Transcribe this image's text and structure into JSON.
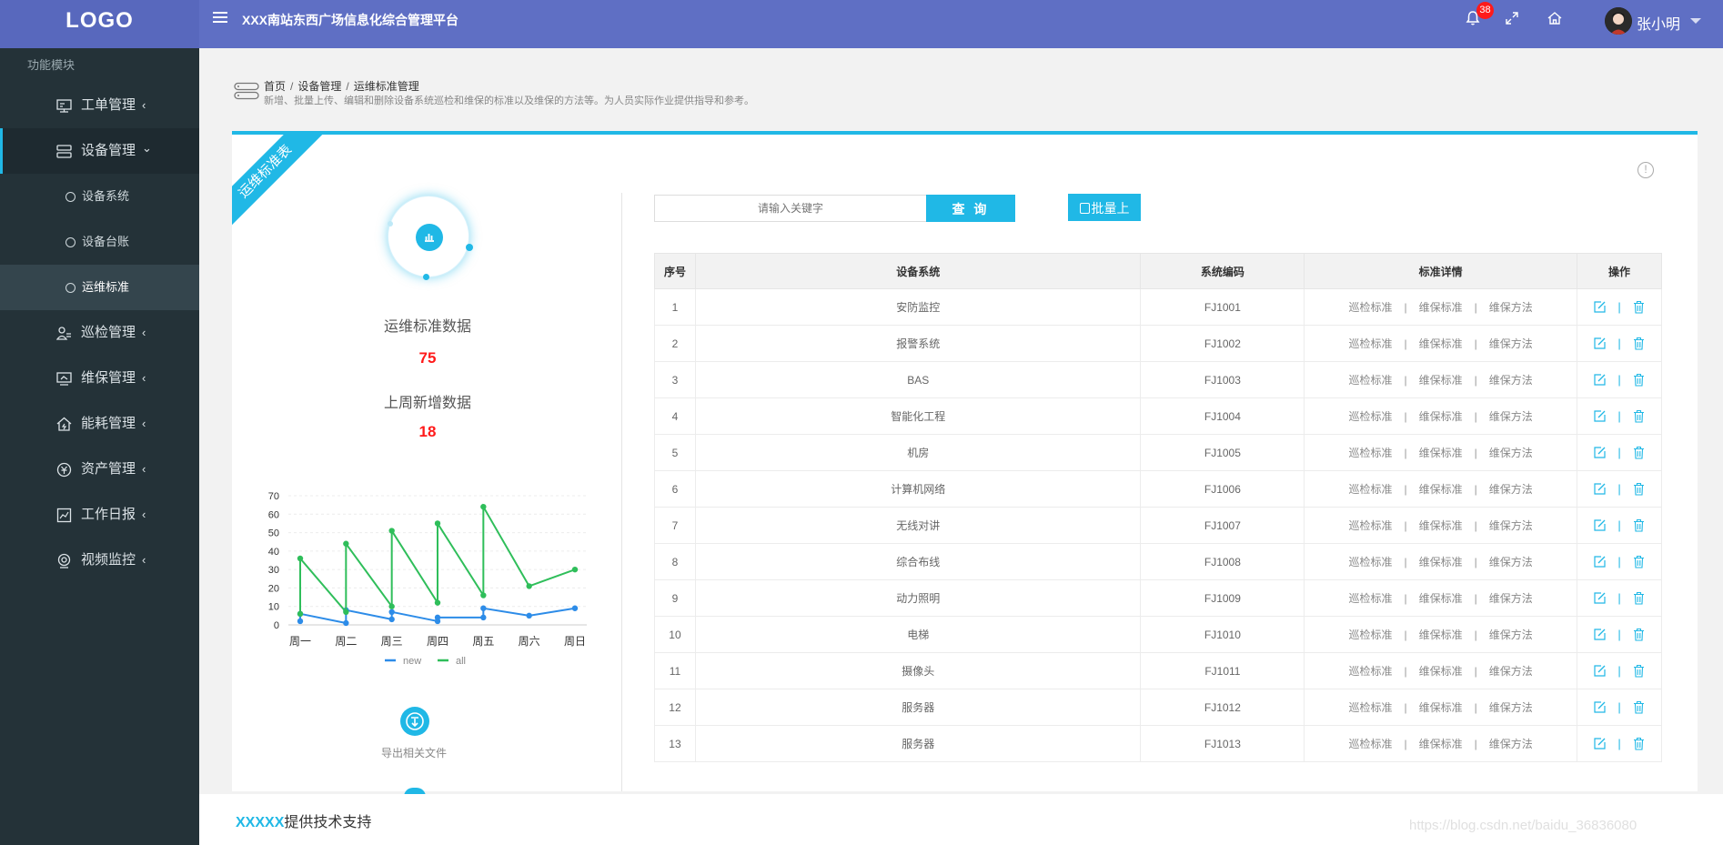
{
  "header": {
    "logo": "LOGO",
    "title": "XXX南站东西广场信息化综合管理平台",
    "notification_count": "38",
    "user_name": "张小明"
  },
  "sidebar": {
    "section_title": "功能模块",
    "items": [
      {
        "label": "工单管理",
        "icon": "workorder-icon",
        "chevron": "‹"
      },
      {
        "label": "设备管理",
        "icon": "device-icon",
        "chevron": "⌄"
      },
      {
        "label": "巡检管理",
        "icon": "inspection-icon",
        "chevron": "‹"
      },
      {
        "label": "维保管理",
        "icon": "maintenance-icon",
        "chevron": "‹"
      },
      {
        "label": "能耗管理",
        "icon": "energy-icon",
        "chevron": "‹"
      },
      {
        "label": "资产管理",
        "icon": "asset-icon",
        "chevron": "‹"
      },
      {
        "label": "工作日报",
        "icon": "report-icon",
        "chevron": "‹"
      },
      {
        "label": "视频监控",
        "icon": "video-icon",
        "chevron": "‹"
      }
    ],
    "sub_items": [
      "设备系统",
      "设备台账",
      "运维标准"
    ]
  },
  "breadcrumb": {
    "items": [
      "首页",
      "设备管理",
      "运维标准管理"
    ],
    "separator": "/",
    "description": "新增、批量上传、编辑和删除设备系统巡检和维保的标准以及维保的方法等。为人员实际作业提供指导和参考。"
  },
  "ribbon": "运维标准表",
  "stats": {
    "total_label": "运维标准数据",
    "total_value": "75",
    "weekly_label": "上周新增数据",
    "weekly_value": "18"
  },
  "chart_data": {
    "type": "line",
    "categories": [
      "周一",
      "周二",
      "周三",
      "周四",
      "周五",
      "周六",
      "周日"
    ],
    "y_ticks": [
      "0",
      "10",
      "20",
      "30",
      "40",
      "50",
      "60",
      "70"
    ],
    "ylim": [
      0,
      70
    ],
    "legend_position": "bottom",
    "series": [
      {
        "name": "new",
        "color": "#2d8ce8",
        "points": [
          [
            0,
            2
          ],
          [
            0,
            6
          ],
          [
            1,
            1
          ],
          [
            1,
            8
          ],
          [
            2,
            3
          ],
          [
            2,
            7
          ],
          [
            3,
            2
          ],
          [
            3,
            4
          ],
          [
            4,
            4
          ],
          [
            4,
            9
          ],
          [
            5,
            5
          ],
          [
            6,
            9
          ]
        ]
      },
      {
        "name": "all",
        "color": "#2fbe5a",
        "points": [
          [
            0,
            6
          ],
          [
            0,
            36
          ],
          [
            1,
            7
          ],
          [
            1,
            44
          ],
          [
            2,
            10
          ],
          [
            2,
            51
          ],
          [
            3,
            12
          ],
          [
            3,
            55
          ],
          [
            4,
            16
          ],
          [
            4,
            64
          ],
          [
            5,
            21
          ],
          [
            6,
            30
          ]
        ]
      }
    ]
  },
  "export_label": "导出相关文件",
  "search": {
    "placeholder": "请输入关键字",
    "button_label": "查 询",
    "upload_label": "批量上传"
  },
  "table": {
    "headers": [
      "序号",
      "设备系统",
      "系统编码",
      "标准详情",
      "操作"
    ],
    "links": [
      "巡检标准",
      "维保标准",
      "维保方法"
    ],
    "rows": [
      {
        "no": "1",
        "system": "安防监控",
        "code": "FJ1001"
      },
      {
        "no": "2",
        "system": "报警系统",
        "code": "FJ1002"
      },
      {
        "no": "3",
        "system": "BAS",
        "code": "FJ1003"
      },
      {
        "no": "4",
        "system": "智能化工程",
        "code": "FJ1004"
      },
      {
        "no": "5",
        "system": "机房",
        "code": "FJ1005"
      },
      {
        "no": "6",
        "system": "计算机网络",
        "code": "FJ1006"
      },
      {
        "no": "7",
        "system": "无线对讲",
        "code": "FJ1007"
      },
      {
        "no": "8",
        "system": "综合布线",
        "code": "FJ1008"
      },
      {
        "no": "9",
        "system": "动力照明",
        "code": "FJ1009"
      },
      {
        "no": "10",
        "system": "电梯",
        "code": "FJ1010"
      },
      {
        "no": "11",
        "system": "摄像头",
        "code": "FJ1011"
      },
      {
        "no": "12",
        "system": "服务器",
        "code": "FJ1012"
      },
      {
        "no": "13",
        "system": "服务器",
        "code": "FJ1013"
      }
    ]
  },
  "footer": {
    "brand": "XXXXX",
    "text": "提供技术支持"
  },
  "watermark": "https://blog.csdn.net/baidu_36836080",
  "colors": {
    "accent": "#20b8e6",
    "header": "#5f6fc4",
    "sidebar": "#243238",
    "highlight_value": "#ff1a1a"
  }
}
